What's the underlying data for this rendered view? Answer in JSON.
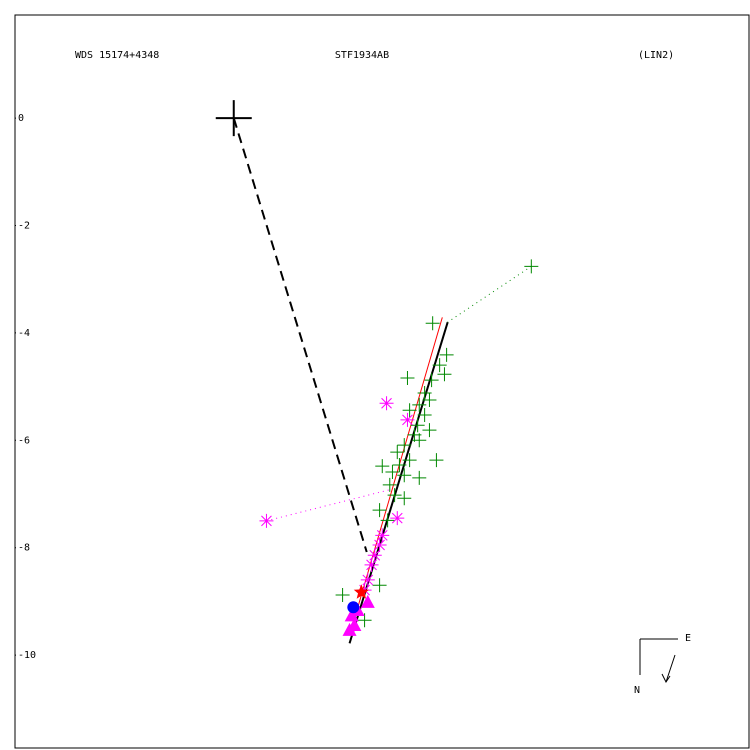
{
  "chart_data": {
    "type": "scatter",
    "title": "STF1934AB",
    "subtitle": "WDS 15174+4348",
    "annotation": "(LIN2)",
    "compass": {
      "east": "E",
      "north": "N"
    },
    "xlim": [
      -4.08,
      9.61
    ],
    "ylim": [
      -11.73,
      1.92
    ],
    "yticks": [
      0,
      -2,
      -4,
      -6,
      -8,
      -10
    ],
    "series": [
      {
        "color": "#008800",
        "marker": "plus",
        "x": [
          3.71,
          3.97,
          3.84,
          3.93,
          3.24,
          3.69,
          3.56,
          3.65,
          3.46,
          3.28,
          3.56,
          3.43,
          3.65,
          3.37,
          3.46,
          3.18,
          3.05,
          3.28,
          3.09,
          3.78,
          2.77,
          2.96,
          3.18,
          2.91,
          3.46,
          3.0,
          3.18,
          2.72,
          2.87,
          2.03,
          2.72,
          2.44,
          5.55
        ],
        "values": [
          -3.82,
          -4.41,
          -4.6,
          -4.77,
          -4.84,
          -4.88,
          -5.12,
          -5.25,
          -5.34,
          -5.44,
          -5.53,
          -5.72,
          -5.81,
          -5.9,
          -6.0,
          -6.09,
          -6.22,
          -6.37,
          -6.46,
          -6.37,
          -6.48,
          -6.59,
          -6.65,
          -6.83,
          -6.7,
          -7.02,
          -7.08,
          -7.3,
          -7.49,
          -8.88,
          -8.7,
          -9.35,
          -2.76
        ]
      },
      {
        "color": "#ff00ff",
        "marker": "asterisk",
        "x": [
          0.61,
          2.85,
          3.24,
          3.05,
          2.77,
          2.72,
          2.63,
          2.57,
          2.5,
          2.44
        ],
        "values": [
          -7.5,
          -5.31,
          -5.62,
          -7.45,
          -7.77,
          -7.95,
          -8.14,
          -8.32,
          -8.6,
          -8.79
        ]
      },
      {
        "color": "#ff00ff",
        "marker": "triangle",
        "x": [
          2.2,
          2.25,
          2.16,
          2.5,
          2.31
        ],
        "values": [
          -9.26,
          -9.44,
          -9.53,
          -9.01,
          -9.16
        ]
      },
      {
        "color": "#0000ff",
        "marker": "circle",
        "x": [
          2.23
        ],
        "values": [
          -9.11
        ]
      },
      {
        "color": "#ff0000",
        "marker": "star",
        "x": [
          2.38
        ],
        "values": [
          -8.83
        ]
      },
      {
        "color": "#000000",
        "marker": "cross",
        "x": [
          0
        ],
        "values": [
          0
        ]
      }
    ],
    "lines": [
      {
        "color": "#000000",
        "dash": "none",
        "width": 2,
        "x": [
          2.16,
          3.99
        ],
        "values": [
          -9.78,
          -3.8
        ]
      },
      {
        "color": "#ff0000",
        "dash": "none",
        "width": 1,
        "x": [
          2.2,
          3.89
        ],
        "values": [
          -9.5,
          -3.71
        ]
      },
      {
        "color": "#000000",
        "dash": "10 6",
        "width": 2,
        "x": [
          0,
          2.48
        ],
        "values": [
          0,
          -8.08
        ]
      },
      {
        "color": "#008800",
        "dash": "1 4",
        "width": 1,
        "x": [
          5.55,
          3.99
        ],
        "values": [
          -2.76,
          -3.8
        ]
      },
      {
        "color": "#ff00ff",
        "dash": "1 4",
        "width": 1,
        "x": [
          0.61,
          2.91
        ],
        "values": [
          -7.5,
          -6.92
        ]
      }
    ]
  }
}
